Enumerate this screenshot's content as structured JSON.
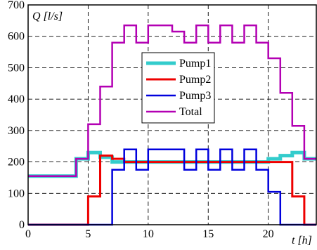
{
  "chart_data": {
    "type": "line",
    "step": true,
    "xlabel": "t [h]",
    "ylabel": "Q [l/s]",
    "xlim": [
      0,
      24
    ],
    "ylim": [
      0,
      700
    ],
    "xticks": [
      0,
      5,
      10,
      15,
      20
    ],
    "yticks": [
      0,
      100,
      200,
      300,
      400,
      500,
      600,
      700
    ],
    "grid": true,
    "grid_style": "dashed",
    "legend_position": "center",
    "series": [
      {
        "name": "Pump1",
        "color": "#33cccc",
        "width": 5,
        "x": [
          0,
          4,
          5,
          6,
          7,
          20,
          21,
          22,
          23,
          24
        ],
        "y": [
          155,
          210,
          230,
          215,
          200,
          210,
          220,
          230,
          210,
          210
        ]
      },
      {
        "name": "Pump2",
        "color": "#ee0000",
        "width": 3,
        "x": [
          0,
          5,
          6,
          7,
          8,
          21,
          22,
          23,
          24
        ],
        "y": [
          0,
          90,
          220,
          210,
          200,
          200,
          90,
          0,
          0
        ]
      },
      {
        "name": "Pump3",
        "color": "#0000dd",
        "width": 2.5,
        "x": [
          0,
          7,
          8,
          9,
          10,
          11,
          13,
          14,
          15,
          16,
          17,
          18,
          19,
          20,
          21,
          24
        ],
        "y": [
          0,
          175,
          240,
          175,
          240,
          240,
          175,
          240,
          175,
          240,
          175,
          240,
          175,
          105,
          0,
          0
        ]
      },
      {
        "name": "Total",
        "color": "#b300b3",
        "width": 2.5,
        "x": [
          0,
          4,
          5,
          6,
          7,
          8,
          9,
          10,
          11,
          12,
          13,
          14,
          15,
          16,
          17,
          18,
          19,
          20,
          21,
          22,
          23,
          24
        ],
        "y": [
          155,
          210,
          320,
          440,
          580,
          635,
          580,
          635,
          635,
          615,
          580,
          635,
          580,
          635,
          580,
          635,
          580,
          530,
          420,
          315,
          210,
          210
        ]
      }
    ]
  }
}
